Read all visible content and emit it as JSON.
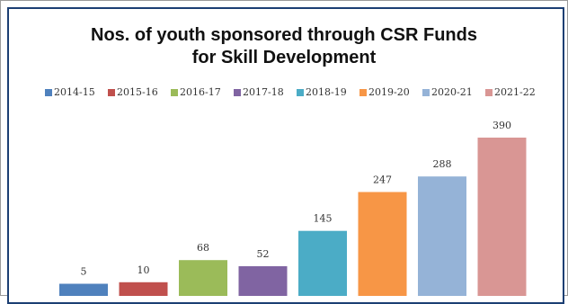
{
  "chart_data": {
    "type": "bar",
    "title_line1": "Nos. of youth sponsored through CSR Funds",
    "title_line2": "for Skill Development",
    "xlabel": "",
    "ylabel": "",
    "ylim": [
      0,
      420
    ],
    "grid": false,
    "legend_position": "top",
    "series": [
      {
        "name": "2014-15",
        "value": 5,
        "color": "#4f81bd"
      },
      {
        "name": "2015-16",
        "value": 10,
        "color": "#c0504d"
      },
      {
        "name": "2016-17",
        "value": 68,
        "color": "#9bbb59"
      },
      {
        "name": "2017-18",
        "value": 52,
        "color": "#8064a2"
      },
      {
        "name": "2018-19",
        "value": 145,
        "color": "#4bacc6"
      },
      {
        "name": "2019-20",
        "value": 247,
        "color": "#f79646"
      },
      {
        "name": "2020-21",
        "value": 288,
        "color": "#95b3d7"
      },
      {
        "name": "2021-22",
        "value": 390,
        "color": "#d99694"
      }
    ],
    "value_labels": [
      "5",
      "10",
      "68",
      "52",
      "145",
      "247",
      "288",
      "390"
    ]
  }
}
